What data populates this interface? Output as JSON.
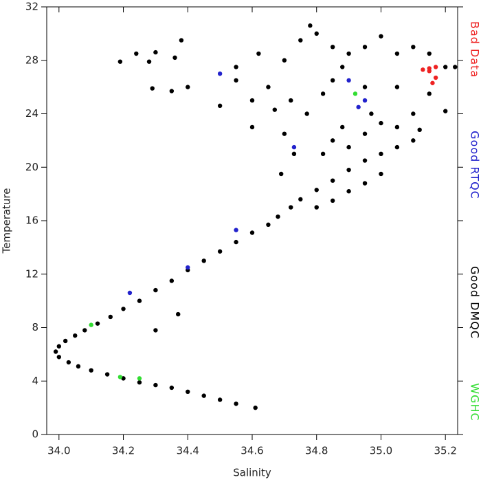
{
  "chart_data": {
    "type": "scatter",
    "x_label": "Salinity",
    "y_label": "Temperature",
    "xlim": [
      33.962,
      35.238
    ],
    "ylim": [
      0,
      32
    ],
    "xticks": [
      {
        "value": 34,
        "label": "34.0"
      },
      34.2,
      34.4,
      34.6,
      34.8,
      {
        "value": 35,
        "label": "35.0"
      },
      35.2
    ],
    "yticks": [
      0,
      4,
      8,
      12,
      16,
      20,
      24,
      28,
      32
    ],
    "series": [
      {
        "name": "Bad Data",
        "color": "#ee2222",
        "x": [
          35.13,
          35.15,
          35.17,
          35.16,
          35.17,
          35.15
        ],
        "values": [
          27.3,
          27.4,
          27.5,
          26.3,
          26.7,
          27.2
        ]
      },
      {
        "name": "Good RTQC",
        "color": "#2222cc",
        "x": [
          34.9,
          34.95,
          34.73,
          34.55,
          34.4,
          34.22,
          34.93,
          34.5
        ],
        "values": [
          26.5,
          25.0,
          21.5,
          15.3,
          12.5,
          10.6,
          24.5,
          27.0
        ]
      },
      {
        "name": "Good DMQC",
        "color": "#000000",
        "x": [
          34.61,
          34.55,
          34.5,
          34.45,
          34.4,
          34.35,
          34.3,
          34.25,
          34.2,
          34.15,
          34.1,
          34.06,
          34.03,
          34.0,
          33.99,
          34.0,
          34.02,
          34.05,
          34.08,
          34.12,
          34.16,
          34.2,
          34.25,
          34.3,
          34.35,
          34.4,
          34.45,
          34.5,
          34.55,
          34.6,
          34.65,
          34.68,
          34.72,
          34.75,
          34.8,
          34.85,
          34.9,
          34.95,
          35.0,
          35.05,
          35.1,
          35.12,
          34.8,
          34.85,
          34.9,
          34.95,
          35.0,
          34.9,
          34.95,
          35.0,
          34.88,
          34.82,
          35.05,
          34.97,
          34.28,
          34.24,
          34.3,
          34.38,
          34.36,
          34.35,
          34.29,
          34.19,
          34.5,
          34.55,
          34.62,
          34.7,
          34.75,
          34.8,
          34.85,
          34.9,
          34.95,
          35.0,
          35.05,
          35.1,
          35.15,
          35.2,
          35.23,
          34.78,
          34.65,
          34.72,
          34.85,
          34.95,
          35.05,
          35.15,
          35.2,
          34.6,
          34.7,
          34.77,
          34.88,
          35.1,
          34.82,
          34.67,
          34.55,
          34.6,
          34.4,
          34.73,
          34.69,
          34.85,
          34.3,
          34.37
        ],
        "values": [
          2.0,
          2.3,
          2.6,
          2.9,
          3.2,
          3.5,
          3.7,
          3.9,
          4.2,
          4.5,
          4.8,
          5.1,
          5.4,
          5.8,
          6.2,
          6.6,
          7.0,
          7.4,
          7.8,
          8.3,
          8.8,
          9.4,
          10.0,
          10.8,
          11.5,
          12.3,
          13.0,
          13.7,
          14.4,
          15.1,
          15.7,
          16.3,
          17.0,
          17.6,
          18.3,
          19.0,
          19.8,
          20.5,
          21.0,
          21.5,
          22.0,
          22.8,
          17.0,
          17.5,
          18.2,
          18.8,
          19.5,
          21.5,
          22.5,
          23.3,
          23.0,
          21.0,
          23.0,
          24.0,
          27.9,
          28.5,
          28.6,
          29.5,
          28.2,
          25.7,
          25.9,
          27.9,
          24.6,
          27.5,
          28.5,
          28.0,
          29.5,
          30.0,
          29.0,
          28.5,
          29.0,
          29.8,
          28.5,
          29.0,
          28.5,
          27.5,
          27.5,
          30.6,
          26.0,
          25.0,
          26.5,
          26.0,
          26.0,
          25.5,
          24.2,
          23.0,
          22.5,
          24.0,
          27.5,
          24.0,
          25.5,
          24.3,
          26.5,
          25.0,
          26.0,
          21.0,
          19.5,
          22.0,
          7.8,
          9.0
        ]
      },
      {
        "name": "WGHC",
        "color": "#33dd33",
        "x": [
          34.1,
          34.19,
          34.25,
          34.92
        ],
        "values": [
          8.2,
          4.3,
          4.2,
          25.5
        ]
      }
    ]
  }
}
